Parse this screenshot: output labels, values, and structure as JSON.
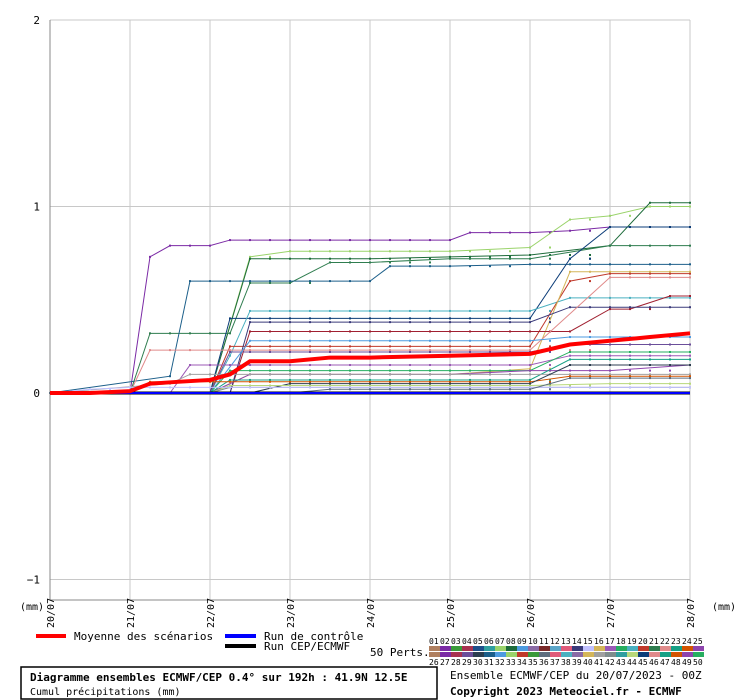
{
  "chart_data": {
    "type": "line",
    "y_unit_left": "(mm)",
    "y_unit_right": "(mm)",
    "ylim": [
      -1.1,
      2.05
    ],
    "y_ticks": [
      "2",
      "1",
      "0",
      "−1"
    ],
    "y_tick_values": [
      2,
      1,
      0,
      -1
    ],
    "x_tick_labels": [
      "20/07",
      "21/07",
      "22/07",
      "23/07",
      "24/07",
      "25/07",
      "26/07",
      "27/07",
      "28/07"
    ],
    "grid": true,
    "series": [
      {
        "name": "Moyenne des scénarios",
        "color": "#ff0000",
        "x": [
          0,
          0.5,
          1,
          1.25,
          1.6,
          2,
          2.25,
          2.5,
          3,
          3.5,
          4,
          5,
          6,
          6.5,
          7,
          7.5,
          8
        ],
        "y": [
          0,
          0,
          0.01,
          0.05,
          0.06,
          0.07,
          0.1,
          0.17,
          0.17,
          0.19,
          0.19,
          0.2,
          0.21,
          0.26,
          0.28,
          0.3,
          0.32
        ]
      },
      {
        "name": "Run de contrôle",
        "color": "#0000ff",
        "x": [
          0,
          8
        ],
        "y": [
          0,
          0
        ]
      },
      {
        "name": "Run CEP/ECMWF",
        "color": "#000000",
        "x": [
          0,
          8
        ],
        "y": [
          0,
          0
        ]
      }
    ],
    "members": [
      {
        "color": "#7b2aa5",
        "x": [
          0,
          1,
          1.25,
          1.5,
          2,
          2.25,
          3,
          4,
          4,
          5,
          5.25,
          6,
          6.5,
          7,
          8
        ],
        "y": [
          0,
          0,
          0.73,
          0.79,
          0.79,
          0.82,
          0.82,
          0.82,
          0.82,
          0.82,
          0.86,
          0.86,
          0.87,
          0.89,
          0.89
        ]
      },
      {
        "color": "#9ad36a",
        "x": [
          0,
          2,
          2.5,
          3,
          5,
          6,
          6.5,
          7,
          7.5,
          8
        ],
        "y": [
          0,
          0,
          0.73,
          0.76,
          0.76,
          0.78,
          0.93,
          0.95,
          1.0,
          1.0
        ]
      },
      {
        "color": "#1d6b3a",
        "x": [
          0,
          2,
          2.5,
          3,
          3.5,
          4,
          5,
          6,
          7,
          7.5,
          8
        ],
        "y": [
          0,
          0,
          0.72,
          0.72,
          0.72,
          0.72,
          0.73,
          0.74,
          0.79,
          1.02,
          1.02
        ]
      },
      {
        "color": "#2f7d4f",
        "x": [
          0,
          1,
          1.25,
          2,
          2.25,
          2.5,
          3,
          3.5,
          4,
          5,
          6,
          7,
          8
        ],
        "y": [
          0,
          0,
          0.32,
          0.32,
          0.32,
          0.59,
          0.59,
          0.7,
          0.7,
          0.72,
          0.72,
          0.79,
          0.79
        ]
      },
      {
        "color": "#1c5f8a",
        "x": [
          0,
          1.5,
          1.75,
          2,
          2.25,
          3,
          4,
          4.25,
          5,
          6,
          6.5,
          7,
          8
        ],
        "y": [
          0,
          0.09,
          0.6,
          0.6,
          0.6,
          0.6,
          0.6,
          0.68,
          0.68,
          0.69,
          0.69,
          0.69,
          0.69
        ]
      },
      {
        "color": "#0b3c78",
        "x": [
          0,
          2,
          2.25,
          2.5,
          3,
          5,
          6,
          6.5,
          7,
          8
        ],
        "y": [
          0,
          0,
          0.4,
          0.4,
          0.4,
          0.4,
          0.4,
          0.72,
          0.89,
          0.89
        ]
      },
      {
        "color": "#4ab0c0",
        "x": [
          0,
          2,
          2.25,
          2.5,
          3,
          5,
          6,
          6.5,
          7,
          8
        ],
        "y": [
          0,
          0,
          0.2,
          0.44,
          0.44,
          0.44,
          0.44,
          0.51,
          0.51,
          0.51
        ]
      },
      {
        "color": "#c0392b",
        "x": [
          0,
          2,
          2.25,
          5,
          6,
          6.5,
          7,
          7.5,
          8
        ],
        "y": [
          0,
          0,
          0.25,
          0.25,
          0.25,
          0.6,
          0.64,
          0.64,
          0.64
        ]
      },
      {
        "color": "#d4b65a",
        "x": [
          0,
          2,
          2.5,
          5,
          6,
          6.5,
          7,
          8
        ],
        "y": [
          0,
          0,
          0.1,
          0.1,
          0.13,
          0.65,
          0.65,
          0.65
        ]
      },
      {
        "color": "#a02030",
        "x": [
          0,
          2.25,
          2.5,
          5,
          6,
          6.5,
          7,
          7.25,
          7.75,
          8
        ],
        "y": [
          0,
          0,
          0.33,
          0.33,
          0.33,
          0.33,
          0.45,
          0.45,
          0.52,
          0.52
        ]
      },
      {
        "color": "#3a3a7a",
        "x": [
          0,
          2.25,
          2.5,
          6,
          6.5,
          8
        ],
        "y": [
          0,
          0,
          0.38,
          0.38,
          0.46,
          0.46
        ]
      },
      {
        "color": "#e08a8a",
        "x": [
          0,
          1,
          1.25,
          2,
          2.25,
          5,
          6,
          7,
          8
        ],
        "y": [
          0,
          0,
          0.23,
          0.23,
          0.23,
          0.23,
          0.23,
          0.62,
          0.62
        ]
      },
      {
        "color": "#6b4e9a",
        "x": [
          0,
          2,
          2.25,
          6,
          6.5,
          8
        ],
        "y": [
          0,
          0,
          0.22,
          0.22,
          0.26,
          0.26
        ]
      },
      {
        "color": "#4d9be0",
        "x": [
          0,
          2,
          2.5,
          5,
          6,
          6.5,
          7,
          8
        ],
        "y": [
          0,
          0,
          0.28,
          0.28,
          0.28,
          0.3,
          0.3,
          0.3
        ]
      },
      {
        "color": "#9b59b6",
        "x": [
          0,
          1.5,
          1.75,
          3,
          4,
          6,
          6.5,
          8
        ],
        "y": [
          0,
          0,
          0.15,
          0.15,
          0.15,
          0.15,
          0.2,
          0.2
        ]
      },
      {
        "color": "#27ae60",
        "x": [
          0,
          2,
          2.25,
          3,
          6,
          6.5,
          8
        ],
        "y": [
          0,
          0,
          0.12,
          0.12,
          0.12,
          0.22,
          0.22
        ]
      },
      {
        "color": "#8e44ad",
        "x": [
          0,
          2,
          2.5,
          5,
          6,
          7,
          8
        ],
        "y": [
          0,
          0,
          0.1,
          0.1,
          0.12,
          0.12,
          0.15
        ]
      },
      {
        "color": "#16a085",
        "x": [
          0,
          2,
          2.25,
          6,
          6.5,
          8
        ],
        "y": [
          0,
          0,
          0.07,
          0.07,
          0.18,
          0.18
        ]
      },
      {
        "color": "#a0a0a0",
        "x": [
          0,
          1.5,
          1.75,
          2,
          2.25,
          8
        ],
        "y": [
          0,
          0.05,
          0.1,
          0.1,
          0.1,
          0.1
        ]
      },
      {
        "color": "#d35400",
        "x": [
          0,
          1,
          1.25,
          3,
          6,
          6.5,
          8
        ],
        "y": [
          0,
          0,
          0.06,
          0.06,
          0.06,
          0.09,
          0.09
        ]
      },
      {
        "color": "#2c3e50",
        "x": [
          0,
          2.5,
          3,
          5,
          6,
          6.5,
          8
        ],
        "y": [
          0,
          0,
          0.05,
          0.05,
          0.05,
          0.15,
          0.15
        ]
      },
      {
        "color": "#b8d87a",
        "x": [
          0,
          2,
          2.25,
          6,
          7,
          8
        ],
        "y": [
          0,
          0,
          0.04,
          0.04,
          0.05,
          0.05
        ]
      },
      {
        "color": "#7f8c8d",
        "x": [
          0,
          2,
          2.25,
          8
        ],
        "y": [
          0,
          0,
          0.03,
          0.03
        ]
      },
      {
        "color": "#c0c0ff",
        "x": [
          0,
          0.5,
          1,
          2,
          2.25,
          8
        ],
        "y": [
          0,
          0.02,
          0.03,
          0.03,
          0.03,
          0.03
        ]
      },
      {
        "color": "#5d6d7e",
        "x": [
          0,
          3,
          3.5,
          6,
          6.5,
          8
        ],
        "y": [
          0,
          0,
          0.02,
          0.02,
          0.08,
          0.08
        ]
      }
    ]
  },
  "legend": {
    "mean_label": "Moyenne des scénarios",
    "control_label": "Run de contrôle",
    "cep_label": "Run CEP/ECMWF",
    "perts_label": "50 Perts.",
    "pert_top": [
      "01",
      "02",
      "03",
      "04",
      "05",
      "06",
      "07",
      "08",
      "09",
      "10",
      "11",
      "12",
      "13",
      "14",
      "15",
      "16",
      "17",
      "18",
      "19",
      "20",
      "21",
      "22",
      "23",
      "24",
      "25"
    ],
    "pert_bottom": [
      "26",
      "27",
      "28",
      "29",
      "30",
      "31",
      "32",
      "33",
      "34",
      "35",
      "36",
      "37",
      "38",
      "39",
      "40",
      "41",
      "42",
      "43",
      "44",
      "45",
      "46",
      "47",
      "48",
      "49",
      "50"
    ],
    "pert_colors_top": [
      "#b08060",
      "#7b2aa5",
      "#3a9a3a",
      "#a83250",
      "#1d4f8a",
      "#2f9f9f",
      "#9ad36a",
      "#1d6b3a",
      "#4d9be0",
      "#8a6aa5",
      "#7a2a2a",
      "#5aa5c8",
      "#e05a7a",
      "#3a3a7a",
      "#c0c0ff",
      "#d4b65a",
      "#9b59b6",
      "#27ae60",
      "#4ab0c0",
      "#c0392b",
      "#2f7d4f",
      "#e08a8a",
      "#16a085",
      "#d35400",
      "#8e44ad"
    ],
    "pert_colors_bottom": [
      "#b08060",
      "#7b2aa5",
      "#a83250",
      "#6b4e9a",
      "#2c3e50",
      "#1c5f8a",
      "#4d9be0",
      "#9ad36a",
      "#c0392b",
      "#3a9a3a",
      "#5d6d7e",
      "#e05a7a",
      "#4ab0c0",
      "#8a6aa5",
      "#d4b65a",
      "#a0a0a0",
      "#7f8c8d",
      "#2f9f9f",
      "#b8d87a",
      "#0b3c78",
      "#e08a8a",
      "#16a085",
      "#d35400",
      "#8e44ad",
      "#27ae60"
    ]
  },
  "footer": {
    "title": "Diagramme ensembles ECMWF/CEP 0.4° sur 192h : 41.9N 12.5E",
    "subtitle": "Cumul précipitations (mm)",
    "run_info": "Ensemble ECMWF/CEP du 20/07/2023 - 00Z",
    "copyright": "Copyright 2023 Meteociel.fr - ECMWF"
  }
}
